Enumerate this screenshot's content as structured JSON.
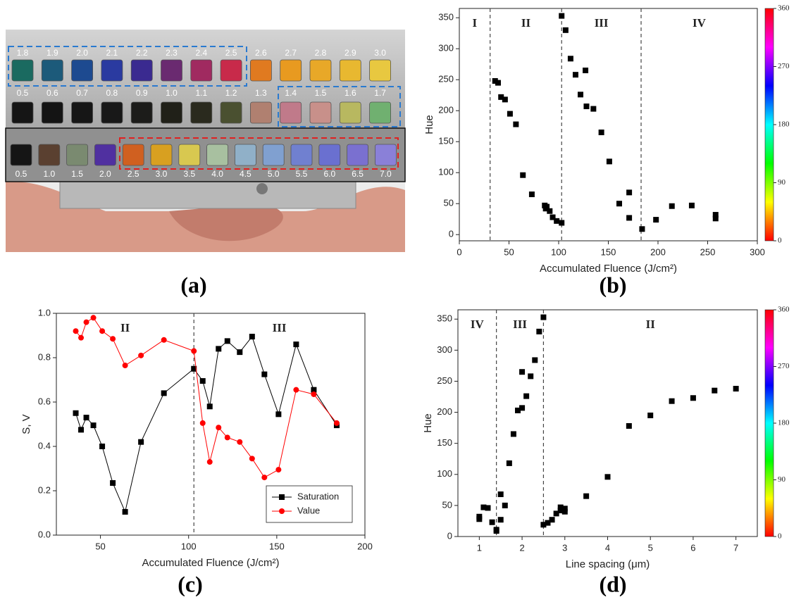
{
  "photo": {
    "caption": "(a)",
    "rows": [
      {
        "labels": [
          "1.8",
          "1.9",
          "2.0",
          "2.1",
          "2.2",
          "2.3",
          "2.4",
          "2.5",
          "2.6",
          "2.7",
          "2.8",
          "2.9",
          "3.0"
        ],
        "colors": [
          "#1a6a60",
          "#1c5a7a",
          "#1d4a90",
          "#2a3aa0",
          "#3a2a90",
          "#6a2a70",
          "#a02a60",
          "#c82a4a",
          "#e07a20",
          "#e89a20",
          "#e8a828",
          "#e8b830",
          "#e8c840"
        ]
      },
      {
        "labels": [
          "0.5",
          "0.6",
          "0.7",
          "0.8",
          "0.9",
          "1.0",
          "1.1",
          "1.2",
          "1.3",
          "1.4",
          "1.5",
          "1.6",
          "1.7"
        ],
        "colors": [
          "#151515",
          "#141414",
          "#161616",
          "#181818",
          "#1c1c1a",
          "#202018",
          "#2a2a1e",
          "#4a5030",
          "#b08070",
          "#c07a8a",
          "#c8908a",
          "#b8b860",
          "#70b070"
        ]
      },
      {
        "labels": [
          "0.5",
          "1.0",
          "1.5",
          "2.0",
          "2.5",
          "3.0",
          "3.5",
          "4.0",
          "4.5",
          "5.0",
          "5.5",
          "6.0",
          "6.5",
          "7.0"
        ],
        "colors": [
          "#151515",
          "#5a4030",
          "#7a8a70",
          "#5030a0",
          "#d06020",
          "#d8a020",
          "#d8c850",
          "#a8c0a0",
          "#90b0c8",
          "#80a0d0",
          "#7080d0",
          "#6a70d0",
          "#7a70d0",
          "#8a80d8"
        ]
      }
    ]
  },
  "chart_data": [
    {
      "type": "scatter",
      "caption": "(b)",
      "x_label": "Accumulated Fluence (J/cm²)",
      "y_label": "Hue",
      "xlim": [
        0,
        300
      ],
      "ylim": [
        -10,
        365
      ],
      "xticks": [
        0,
        50,
        100,
        150,
        200,
        250,
        300
      ],
      "yticks": [
        0,
        50,
        100,
        150,
        200,
        250,
        300,
        350
      ],
      "dividers": [
        31,
        103,
        183
      ],
      "region_labels": [
        "I",
        "II",
        "III",
        "IV"
      ],
      "colorbar": {
        "range": [
          0,
          360
        ],
        "ticks": [
          0,
          90,
          180,
          270,
          360
        ]
      },
      "x": [
        36,
        39,
        42,
        46,
        51,
        57,
        64,
        73,
        86,
        87,
        88,
        91,
        94,
        98,
        103,
        103,
        107,
        112,
        117,
        122,
        127,
        128,
        135,
        143,
        151,
        161,
        171,
        171,
        184,
        198,
        214,
        234,
        258,
        258
      ],
      "series": [
        {
          "color": "#000000",
          "marker": "square",
          "values": [
            248,
            245,
            222,
            218,
            195,
            178,
            96,
            65,
            47,
            42,
            45,
            38,
            28,
            22,
            19,
            353,
            330,
            284,
            258,
            226,
            265,
            207,
            203,
            165,
            118,
            50,
            68,
            27,
            9,
            24,
            46,
            47,
            32,
            26
          ]
        }
      ]
    },
    {
      "type": "line",
      "caption": "(c)",
      "x_label": "Accumulated Fluence (J/cm²)",
      "y_label": "S, V",
      "xlim": [
        25,
        200
      ],
      "ylim": [
        0,
        1
      ],
      "xticks": [
        50,
        100,
        150,
        200
      ],
      "yticks": [
        {
          "value": 0,
          "label": "0.0"
        },
        0.2,
        0.4,
        0.6,
        0.8,
        {
          "value": 1,
          "label": "1.0"
        }
      ],
      "dividers": [
        103
      ],
      "region_labels": [
        "II",
        "III"
      ],
      "legend": "lower right",
      "x": [
        36,
        39,
        42,
        46,
        51,
        57,
        64,
        73,
        86,
        103,
        108,
        112,
        117,
        122,
        129,
        136,
        143,
        151,
        161,
        171,
        184
      ],
      "series": [
        {
          "name": "Saturation",
          "color": "#000000",
          "marker": "square",
          "values": [
            0.55,
            0.475,
            0.53,
            0.495,
            0.4,
            0.235,
            0.105,
            0.42,
            0.64,
            0.75,
            0.695,
            0.58,
            0.84,
            0.875,
            0.825,
            0.895,
            0.725,
            0.545,
            0.86,
            0.655,
            0.495
          ]
        },
        {
          "name": "Value",
          "color": "#ff0000",
          "marker": "circle",
          "values": [
            0.92,
            0.89,
            0.96,
            0.98,
            0.92,
            0.885,
            0.765,
            0.81,
            0.88,
            0.83,
            0.505,
            0.33,
            0.485,
            0.44,
            0.42,
            0.345,
            0.26,
            0.295,
            0.655,
            0.635,
            0.505
          ]
        }
      ]
    },
    {
      "type": "scatter",
      "caption": "(d)",
      "x_label": "Line spacing (μm)",
      "y_label": "Hue",
      "xlim": [
        0.5,
        7.5
      ],
      "ylim": [
        0,
        365
      ],
      "xticks": [
        1,
        2,
        3,
        4,
        5,
        6,
        7
      ],
      "yticks": [
        0,
        50,
        100,
        150,
        200,
        250,
        300,
        350
      ],
      "dividers": [
        1.4,
        2.5
      ],
      "region_labels": [
        "IV",
        "III",
        "II"
      ],
      "colorbar": {
        "range": [
          0,
          360
        ],
        "ticks": [
          0,
          90,
          180,
          270,
          360
        ]
      },
      "x": [
        1,
        1,
        1.1,
        1.2,
        1.3,
        1.4,
        1.4,
        1.5,
        1.5,
        1.6,
        1.7,
        1.8,
        1.9,
        2,
        2,
        2.1,
        2.2,
        2.3,
        2.4,
        2.5,
        2.5,
        2.6,
        2.7,
        2.8,
        2.9,
        2.9,
        3,
        3,
        3.5,
        4,
        4.5,
        5,
        5.5,
        6,
        6.5,
        7
      ],
      "series": [
        {
          "color": "#000000",
          "marker": "square",
          "values": [
            28,
            32,
            47,
            46,
            23,
            9,
            11,
            27,
            68,
            50,
            118,
            165,
            203,
            207,
            265,
            226,
            258,
            284,
            330,
            353,
            19,
            22,
            27,
            37,
            42,
            47,
            40,
            45,
            65,
            96,
            178,
            195,
            218,
            223,
            235,
            238
          ]
        }
      ]
    }
  ]
}
